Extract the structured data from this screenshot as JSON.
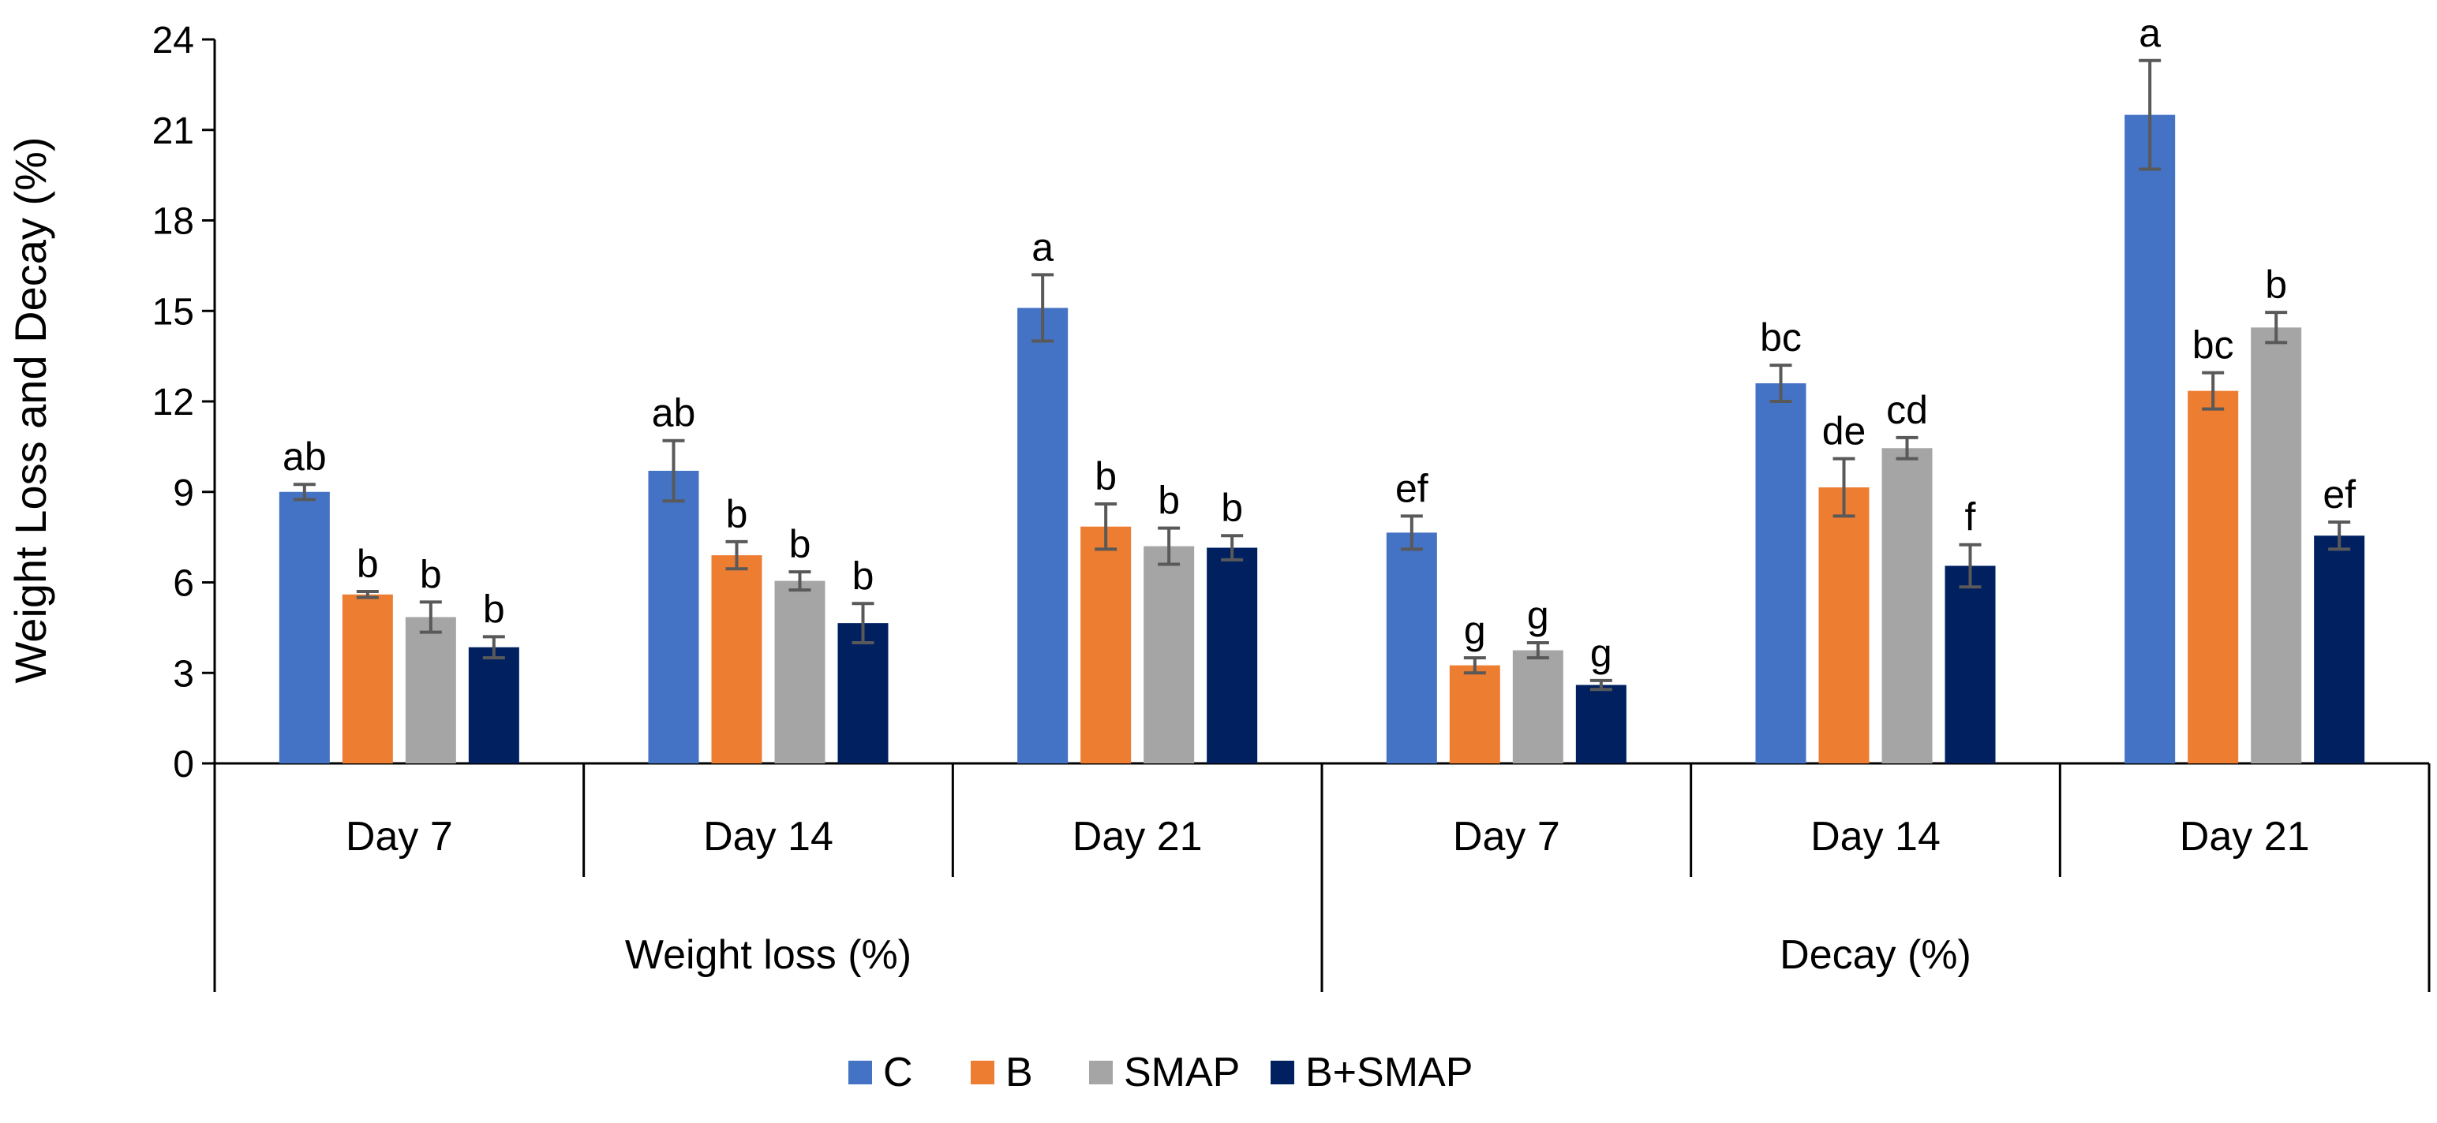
{
  "chart_data": {
    "type": "bar",
    "ylabel": "Weight Loss and Decay (%)",
    "ylim": [
      0,
      24
    ],
    "yticks": [
      "0",
      "3",
      "6",
      "9",
      "12",
      "15",
      "18",
      "21",
      "24"
    ],
    "grid": false,
    "legend_position": "bottom",
    "groups": [
      {
        "label": "Weight loss (%)",
        "subcategories": [
          "Day 7",
          "Day 14",
          "Day 21"
        ]
      },
      {
        "label": "Decay (%)",
        "subcategories": [
          "Day 7",
          "Day 14",
          "Day 21"
        ]
      }
    ],
    "series": [
      {
        "name": "C",
        "color": "#4472C4",
        "values": [
          9.0,
          9.7,
          15.1,
          7.65,
          12.6,
          21.5
        ],
        "errors": [
          0.25,
          1.0,
          1.1,
          0.55,
          0.6,
          1.8
        ],
        "letters": [
          "ab",
          "ab",
          "a",
          "ef",
          "bc",
          "a"
        ]
      },
      {
        "name": "B",
        "color": "#ED7D31",
        "values": [
          5.6,
          6.9,
          7.85,
          3.25,
          9.15,
          12.35
        ],
        "errors": [
          0.1,
          0.45,
          0.75,
          0.25,
          0.95,
          0.6
        ],
        "letters": [
          "b",
          "b",
          "b",
          "g",
          "de",
          "bc"
        ]
      },
      {
        "name": "SMAP",
        "color": "#A5A5A5",
        "values": [
          4.85,
          6.05,
          7.2,
          3.75,
          10.45,
          14.45
        ],
        "errors": [
          0.5,
          0.3,
          0.6,
          0.25,
          0.35,
          0.5
        ],
        "letters": [
          "b",
          "b",
          "b",
          "g",
          "cd",
          "b"
        ]
      },
      {
        "name": "B+SMAP",
        "color": "#002060",
        "values": [
          3.85,
          4.65,
          7.15,
          2.6,
          6.55,
          7.55
        ],
        "errors": [
          0.35,
          0.65,
          0.4,
          0.15,
          0.7,
          0.45
        ],
        "letters": [
          "b",
          "b",
          "b",
          "g",
          "f",
          "ef"
        ]
      }
    ]
  }
}
